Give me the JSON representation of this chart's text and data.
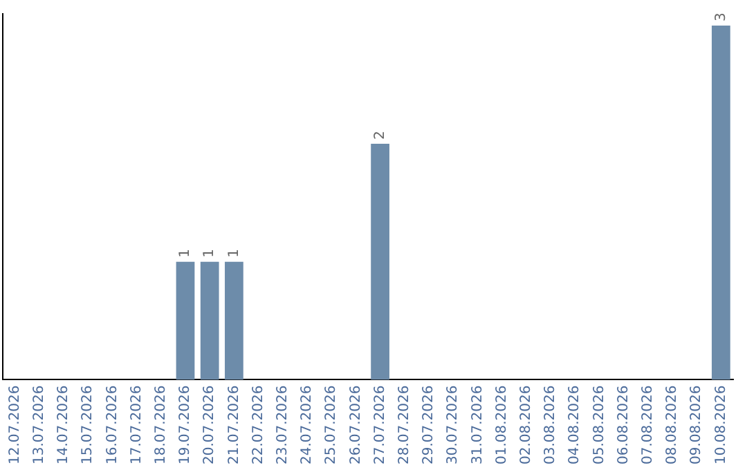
{
  "chart_data": {
    "type": "bar",
    "categories": [
      "12.07.2026",
      "13.07.2026",
      "14.07.2026",
      "15.07.2026",
      "16.07.2026",
      "17.07.2026",
      "18.07.2026",
      "19.07.2026",
      "20.07.2026",
      "21.07.2026",
      "22.07.2026",
      "23.07.2026",
      "24.07.2026",
      "25.07.2026",
      "26.07.2026",
      "27.07.2026",
      "28.07.2026",
      "29.07.2026",
      "30.07.2026",
      "31.07.2026",
      "01.08.2026",
      "02.08.2026",
      "03.08.2026",
      "04.08.2026",
      "05.08.2026",
      "06.08.2026",
      "07.08.2026",
      "08.08.2026",
      "09.08.2026",
      "10.08.2026"
    ],
    "values": [
      0,
      0,
      0,
      0,
      0,
      0,
      0,
      1,
      1,
      1,
      0,
      0,
      0,
      0,
      0,
      2,
      0,
      0,
      0,
      0,
      0,
      0,
      0,
      0,
      0,
      0,
      0,
      0,
      0,
      3
    ],
    "value_labels": [
      null,
      null,
      null,
      null,
      null,
      null,
      null,
      "1",
      "1",
      "1",
      null,
      null,
      null,
      null,
      null,
      "2",
      null,
      null,
      null,
      null,
      null,
      null,
      null,
      null,
      null,
      null,
      null,
      null,
      null,
      "3"
    ],
    "color": "#6d8caa",
    "ylim": [
      0,
      3.1
    ],
    "tick_labels": "x",
    "grid": false,
    "legend": false
  }
}
